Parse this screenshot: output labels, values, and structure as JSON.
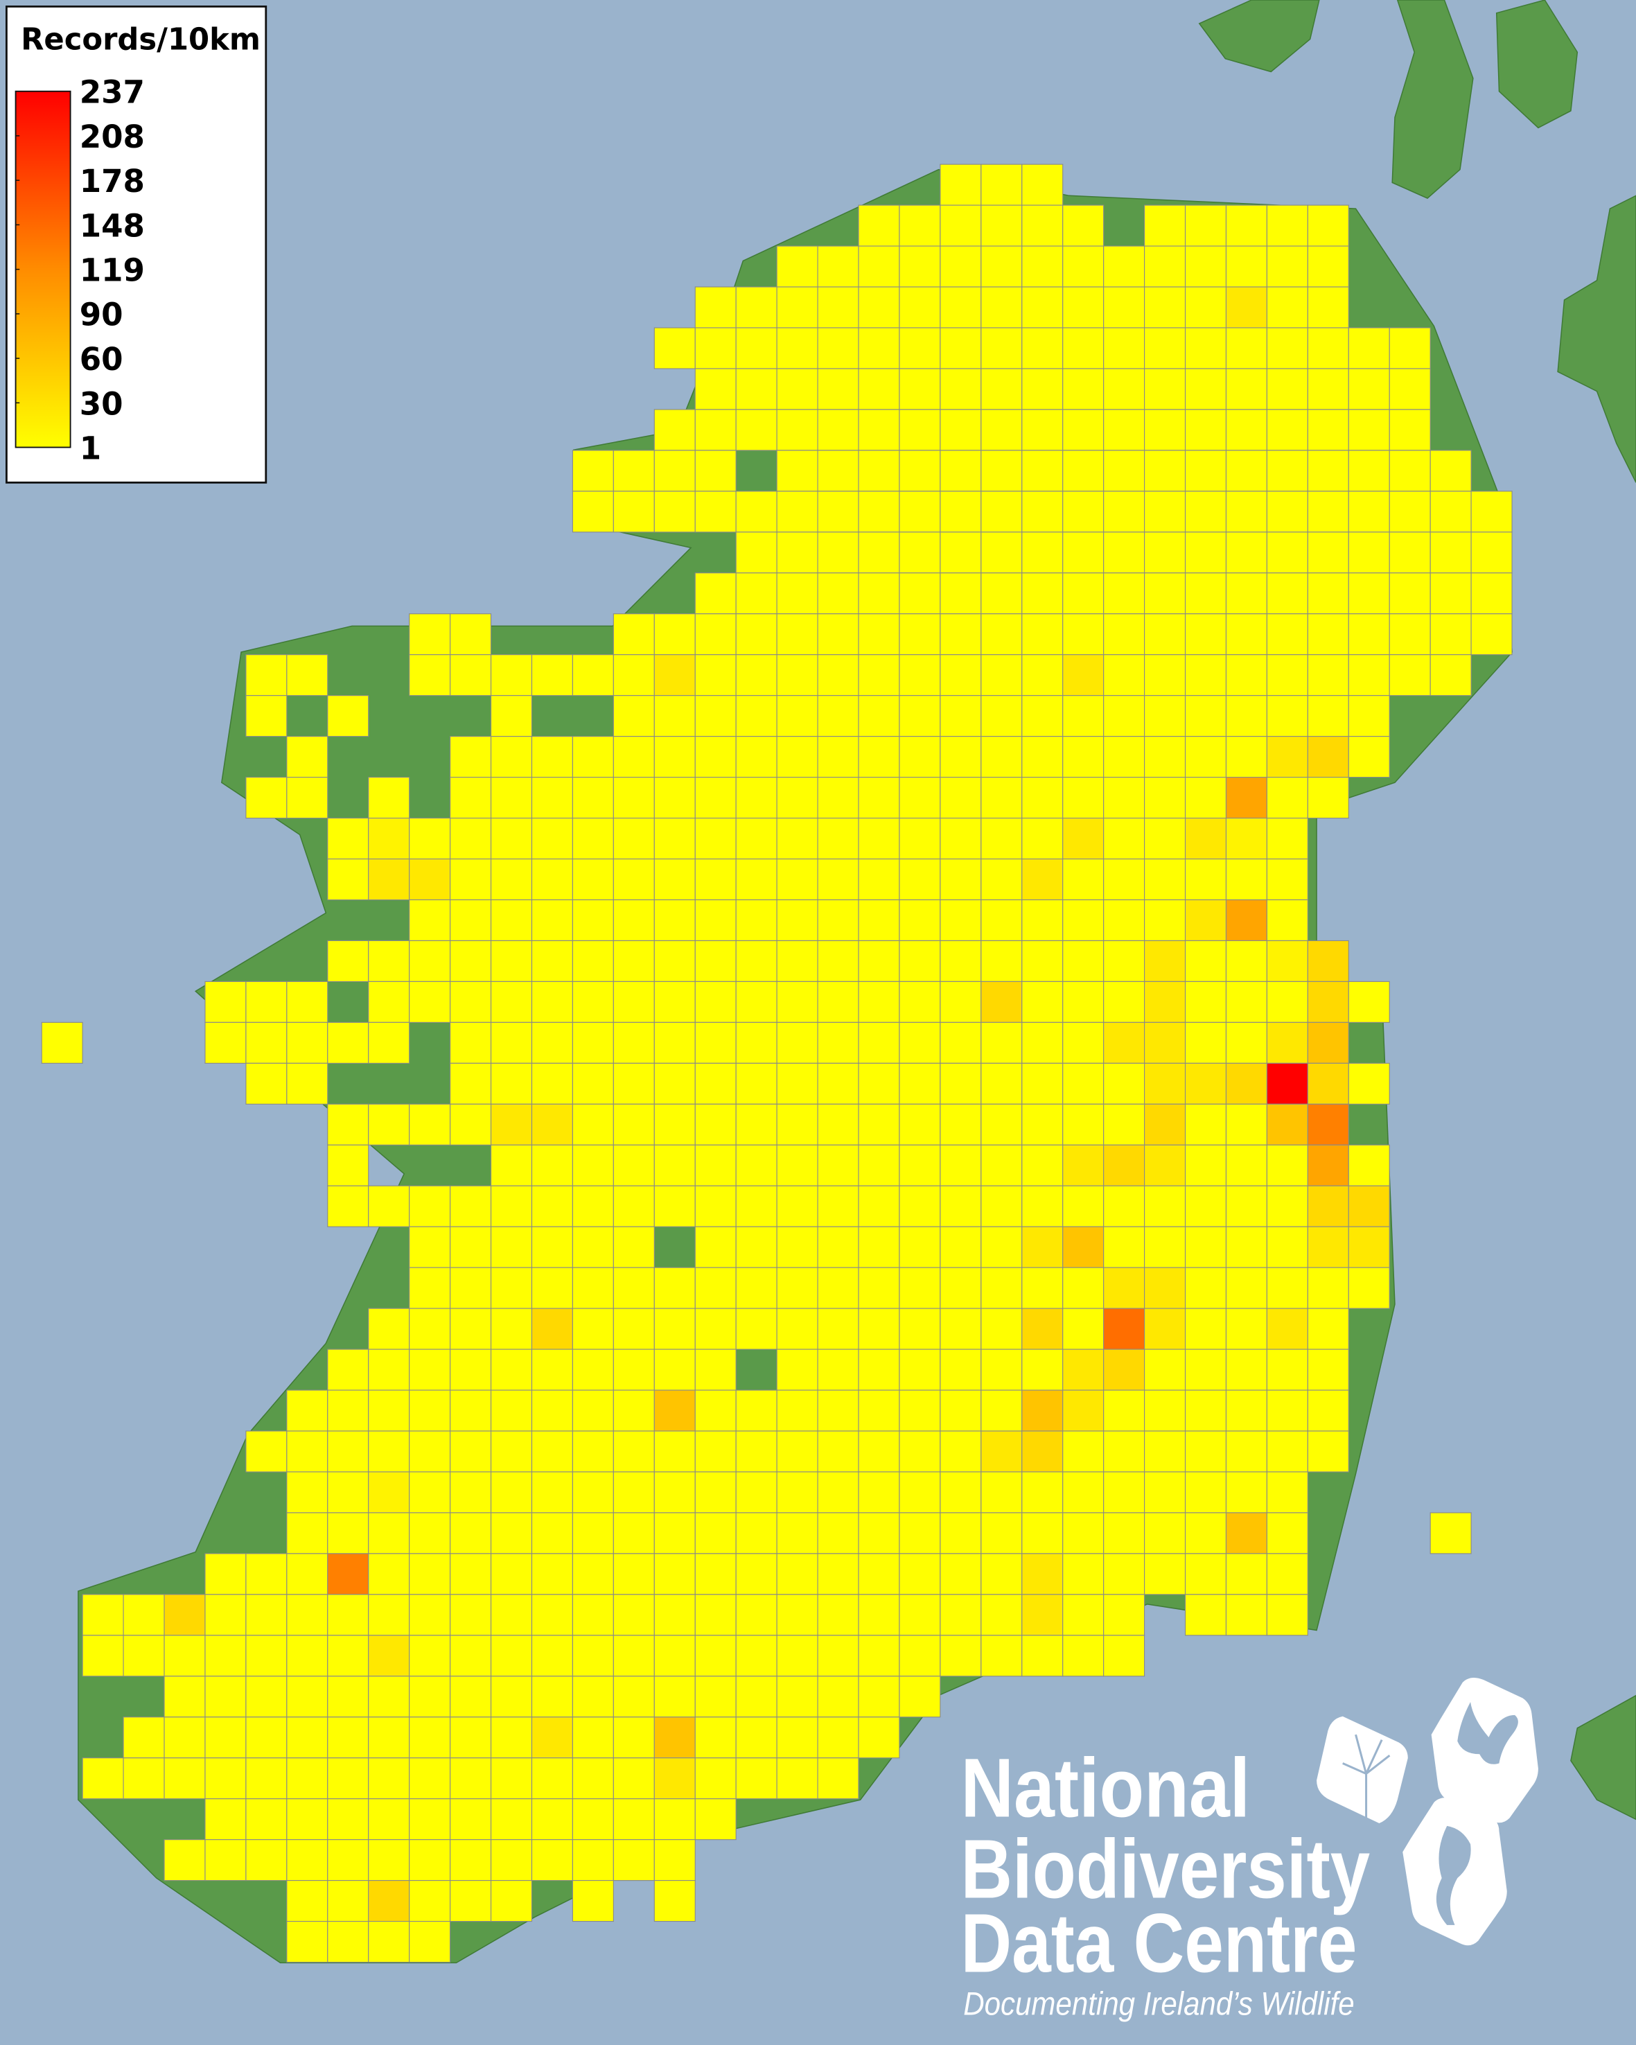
{
  "legend": {
    "title": "Records/10km",
    "ticks": [
      "237",
      "208",
      "178",
      "148",
      "119",
      "90",
      "60",
      "30",
      "1"
    ],
    "gradient_top": "#ff0000",
    "gradient_mid": "#ff8c00",
    "gradient_bottom": "#ffff00"
  },
  "logo": {
    "line1": "National",
    "line2": "Biodiversity",
    "line3": "Data Centre",
    "tagline": "Documenting Ireland’s Wildlife",
    "icons": [
      "tree-icon",
      "butterfly-icon",
      "seahorse-icon"
    ]
  },
  "colors": {
    "sea": "#9ab3cc",
    "land": "#5a9a4a",
    "cell_border": "#8a8a8a"
  },
  "chart_data": {
    "type": "heatmap",
    "title": "Records/10km",
    "scale_range": [
      1,
      237
    ],
    "level_colors": {
      "1": "#ffff00",
      "2": "#fff300",
      "3": "#ffe800",
      "4": "#ffd900",
      "5": "#ffc400",
      "6": "#ffa500",
      "7": "#ff8000",
      "8": "#ff6e00",
      "9": "#ff0000"
    },
    "level_approx_records": {
      "1": 5,
      "2": 15,
      "3": 30,
      "4": 45,
      "5": 60,
      "6": 95,
      "7": 130,
      "8": 155,
      "9": 237
    },
    "rows": [
      [
        [
          22,
          "111"
        ]
      ],
      [
        [
          20,
          "111111"
        ],
        [
          27,
          "11111"
        ]
      ],
      [
        [
          18,
          "11111111111111"
        ]
      ],
      [
        [
          16,
          "1111111111111311"
        ]
      ],
      [
        [
          15,
          "1111111111111111111"
        ]
      ],
      [
        [
          16,
          "111111111111111111"
        ]
      ],
      [
        [
          15,
          "1111111111111111111"
        ]
      ],
      [
        [
          13,
          "1111"
        ],
        [
          18,
          "11111111111111111"
        ]
      ],
      [
        [
          13,
          "11111111111111111111111"
        ]
      ],
      [
        [
          17,
          "1111111111111111111"
        ]
      ],
      [
        [
          16,
          "11111111111111111111"
        ]
      ],
      [
        [
          9,
          "11"
        ],
        [
          14,
          "1111111111111111111111"
        ]
      ],
      [
        [
          5,
          "11"
        ],
        [
          9,
          "11111131111111113111111111"
        ]
      ],
      [
        [
          5,
          "1"
        ],
        [
          7,
          "1"
        ],
        [
          11,
          "1"
        ],
        [
          14,
          "1111111111111111111"
        ]
      ],
      [
        [
          6,
          "1"
        ],
        [
          10,
          "11111111111111111111341"
        ]
      ],
      [
        [
          5,
          "11"
        ],
        [
          8,
          "1"
        ],
        [
          10,
          "1111111111111111111611"
        ]
      ],
      [
        [
          7,
          "121111111111111111311321"
        ]
      ],
      [
        [
          7,
          "133111111111111113111111"
        ]
      ],
      [
        [
          9,
          "1111111111111111111361"
        ]
      ],
      [
        [
          7,
          "1111111111111111111131124"
        ]
      ],
      [
        [
          4,
          "111"
        ],
        [
          8,
          "1111111111111114111311141"
        ]
      ],
      [
        [
          0,
          "1"
        ],
        [
          4,
          "11111"
        ],
        [
          10,
          "1111111111111111331135"
        ]
      ],
      [
        [
          5,
          "11"
        ],
        [
          10,
          "11111111111111111334941"
        ]
      ],
      [
        [
          7,
          "1111331111111111111141157"
        ]
      ],
      [
        [
          7,
          "1"
        ],
        [
          11,
          "1111111111111134311161"
        ]
      ],
      [
        [
          7,
          "11111111111111111111111144"
        ]
      ],
      [
        [
          9,
          "111111"
        ],
        [
          16,
          "11111111351111133"
        ]
      ],
      [
        [
          9,
          "111111111111111113311111"
        ]
      ],
      [
        [
          8,
          "111141111111111141831131"
        ]
      ],
      [
        [
          7,
          "1111111111"
        ],
        [
          18,
          "11111113411111"
        ]
      ],
      [
        [
          6,
          "11111111151111111153111111"
        ]
      ],
      [
        [
          5,
          "111111111111111111341111111"
        ]
      ],
      [
        [
          6,
          "1121111111111111111111111"
        ]
      ],
      [
        [
          6,
          "1111111111111111111111151"
        ],
        [
          34,
          "1"
        ]
      ],
      [
        [
          4,
          "111711111111111111113111111"
        ]
      ],
      [
        [
          1,
          "11411111111111111111111311"
        ],
        [
          28,
          "111"
        ]
      ],
      [
        [
          1,
          "11111113111111111111111111"
        ]
      ],
      [
        [
          3,
          "1111111111111111111"
        ]
      ],
      [
        [
          2,
          "1111111111311511111"
        ]
      ],
      [
        [
          1,
          "1111111111111131111"
        ]
      ],
      [
        [
          4,
          "1111111111111"
        ]
      ],
      [
        [
          3,
          "1111111111111"
        ]
      ],
      [
        [
          6,
          "114111"
        ],
        [
          13,
          "1"
        ],
        [
          15,
          "1"
        ]
      ],
      [
        [
          6,
          "1111"
        ]
      ]
    ]
  }
}
